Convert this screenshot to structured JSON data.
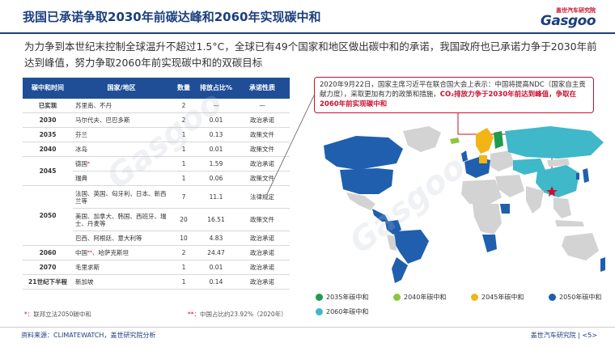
{
  "header": {
    "title": "我国已承诺争取2030年前碳达峰和2060年实现碳中和",
    "logo_top": "盖世汽车研究院",
    "logo_main": "Gasgoo"
  },
  "intro": "为力争到本世纪末控制全球温升不超过1.5°C，全球已有49个国家和地区做出碳中和的承诺，我国政府也已承诺力争于2030年前达到峰值，努力争取2060年前实现碳中和的双碳目标",
  "table": {
    "headers": [
      "碳中和时间",
      "国家/地区",
      "数量",
      "排放占比%",
      "承诺性质"
    ],
    "rows": [
      {
        "year": "已实现",
        "country": "苏里南、不丹",
        "count": "2",
        "share": "—",
        "nature": "—"
      },
      {
        "year": "2030",
        "country": "马尔代夫、巴巴多斯",
        "count": "2",
        "share": "0.01",
        "nature": "政治承诺"
      },
      {
        "year": "2035",
        "country": "芬兰",
        "count": "1",
        "share": "0.13",
        "nature": "政策文件"
      },
      {
        "year": "2040",
        "country": "冰岛",
        "count": "1",
        "share": "0.01",
        "nature": "政策文件"
      },
      {
        "year": "2045",
        "country": "德国",
        "count": "1",
        "share": "1.59",
        "nature": "政治承诺"
      },
      {
        "year": "",
        "country": "瑞典",
        "count": "1",
        "share": "0.06",
        "nature": "政策文件"
      },
      {
        "year": "2050",
        "country": "法国、英国、匈牙利、日本、新西兰等",
        "count": "7",
        "share": "11.1",
        "nature": "法律规定"
      },
      {
        "year": "",
        "country": "美国、加拿大、韩国、西班牙、瑞士、丹麦等",
        "count": "20",
        "share": "16.51",
        "nature": "政策文件"
      },
      {
        "year": "",
        "country": "巴西、阿根廷、意大利等",
        "count": "10",
        "share": "4.83",
        "nature": "政治承诺"
      },
      {
        "year": "2060",
        "country": "中国",
        "count": "2",
        "share": "24.47",
        "nature": "政治承诺"
      },
      {
        "year": "2070",
        "country": "毛里求斯",
        "count": "1",
        "share": "0.01",
        "nature": "政治承诺"
      },
      {
        "year": "21世纪下半程",
        "country": "新加坡",
        "count": "1",
        "share": "0.14",
        "nature": "政治承诺"
      }
    ],
    "china_suffix": "、哈萨克斯坦",
    "star1": "*",
    "star2": "**"
  },
  "footnotes": {
    "left_star": "*：",
    "left": "联邦立法2050碳中和",
    "right_star": "**：",
    "right": "中国占比约23.92%（2020年）"
  },
  "callout": {
    "text1": "2020年9月22日，国家主席习近平在联合国大会上表示：中国将提高NDC（国家自主贡献力度），采取更加有力的政策和措施，",
    "highlight": "CO₂排放力争于2030年前达到峰值，争取在2060年前实现碳中和"
  },
  "legend": [
    {
      "label": "2035年碳中和",
      "color": "#1e9b4d"
    },
    {
      "label": "2040年碳中和",
      "color": "#8cc63f"
    },
    {
      "label": "2045年碳中和",
      "color": "#f2b416"
    },
    {
      "label": "2050年碳中和",
      "color": "#1f5fae"
    },
    {
      "label": "2060年碳中和",
      "color": "#3fb8c9"
    }
  ],
  "colors": {
    "brand": "#1b3f7e",
    "accent": "#c8102e",
    "map_gray": "#d3d3d3"
  },
  "footer": {
    "source": "资料来源：CLIMATEWATCH，盖世研究院分析",
    "org": "盖世汽车研究院",
    "page": "<5>"
  }
}
